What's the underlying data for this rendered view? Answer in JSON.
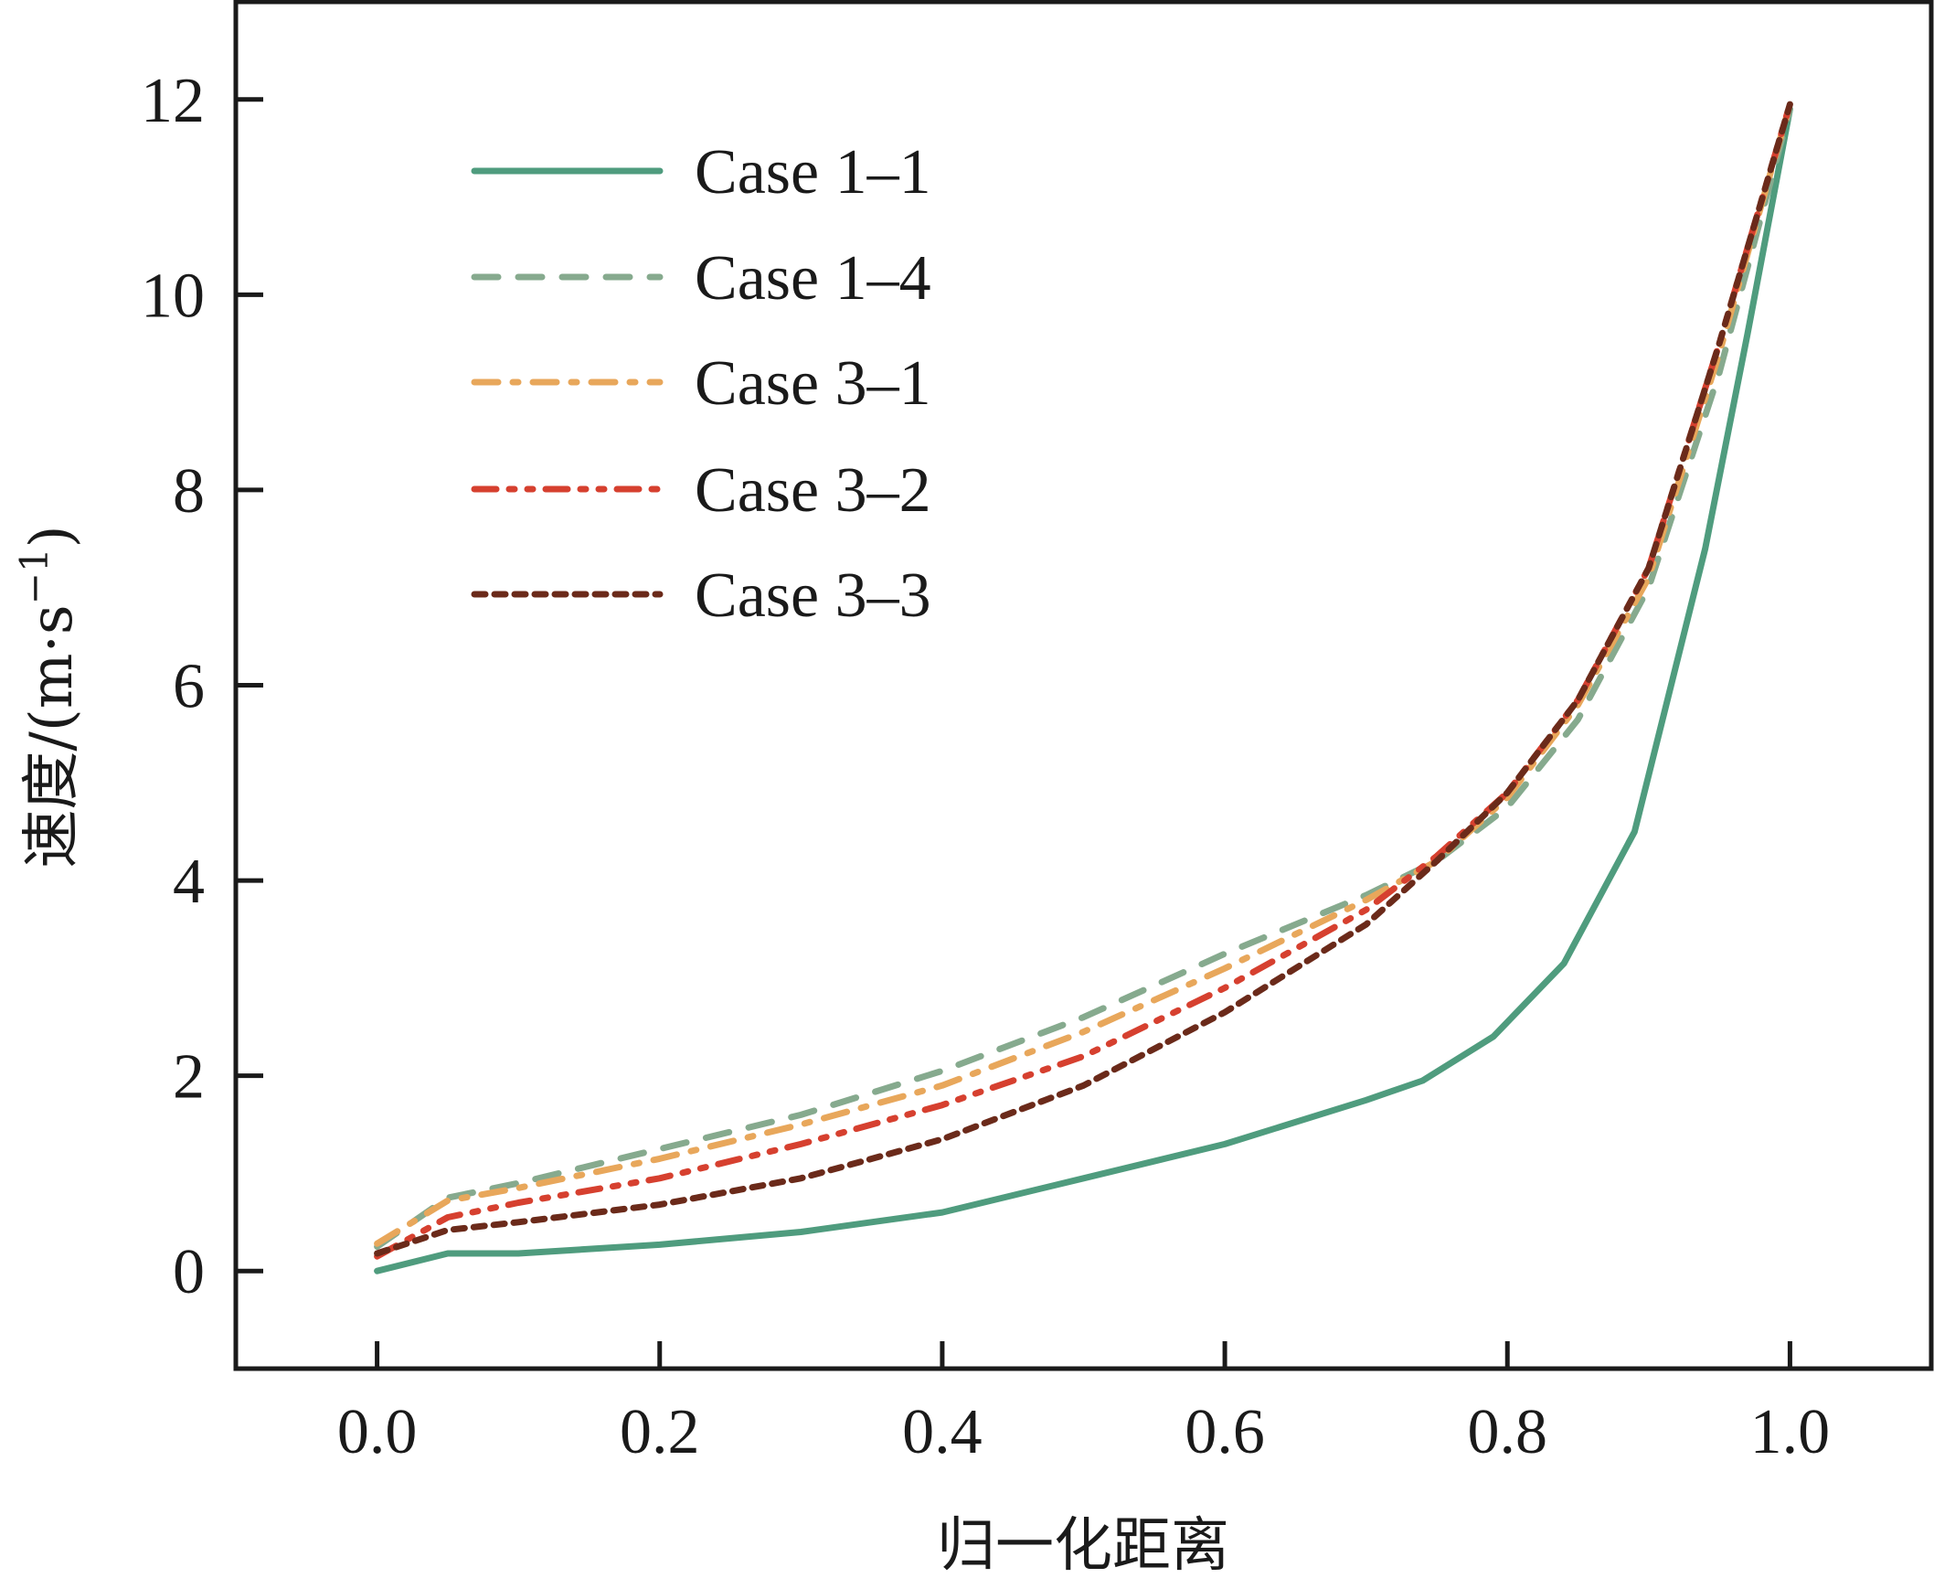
{
  "chart_data": {
    "type": "line",
    "title": "",
    "xlabel": "归一化距离",
    "ylabel": "速度/(m·s",
    "ylabel_exponent": "−1",
    "ylabel_close": ")",
    "xlim": [
      -0.1,
      1.1
    ],
    "ylim": [
      -1,
      13
    ],
    "xticks": [
      0.0,
      0.2,
      0.4,
      0.6,
      0.8,
      1.0
    ],
    "xtick_labels": [
      "0.0",
      "0.2",
      "0.4",
      "0.6",
      "0.8",
      "1.0"
    ],
    "yticks": [
      0,
      2,
      4,
      6,
      8,
      10,
      12
    ],
    "ytick_labels": [
      "0",
      "2",
      "4",
      "6",
      "8",
      "10",
      "12"
    ],
    "grid": false,
    "legend_position": "top-left",
    "series": [
      {
        "name": "Case 1–1",
        "color": "#4f9c7e",
        "dash": "solid",
        "x": [
          0.0,
          0.05,
          0.1,
          0.2,
          0.3,
          0.4,
          0.5,
          0.6,
          0.7,
          0.74,
          0.79,
          0.84,
          0.89,
          0.94,
          0.97,
          1.0
        ],
        "y": [
          0.0,
          0.18,
          0.18,
          0.27,
          0.4,
          0.6,
          0.95,
          1.3,
          1.75,
          1.95,
          2.4,
          3.15,
          4.5,
          7.4,
          9.6,
          11.9
        ]
      },
      {
        "name": "Case 1–4",
        "color": "#86aa8e",
        "dash": "dashed",
        "x": [
          0.0,
          0.05,
          0.1,
          0.2,
          0.3,
          0.4,
          0.5,
          0.6,
          0.7,
          0.75,
          0.8,
          0.85,
          0.9,
          0.95,
          1.0
        ],
        "y": [
          0.25,
          0.75,
          0.9,
          1.25,
          1.6,
          2.05,
          2.6,
          3.25,
          3.85,
          4.2,
          4.75,
          5.65,
          7.0,
          9.2,
          11.9
        ]
      },
      {
        "name": "Case 3–1",
        "color": "#e8a75b",
        "dash": "dashdot",
        "x": [
          0.0,
          0.05,
          0.1,
          0.2,
          0.3,
          0.4,
          0.5,
          0.6,
          0.7,
          0.75,
          0.8,
          0.85,
          0.9,
          0.95,
          1.0
        ],
        "y": [
          0.28,
          0.72,
          0.85,
          1.15,
          1.5,
          1.9,
          2.45,
          3.1,
          3.8,
          4.2,
          4.85,
          5.8,
          7.1,
          9.4,
          11.95
        ]
      },
      {
        "name": "Case 3–2",
        "color": "#d6402f",
        "dash": "dashdotdot",
        "x": [
          0.0,
          0.05,
          0.1,
          0.2,
          0.3,
          0.4,
          0.5,
          0.6,
          0.7,
          0.75,
          0.8,
          0.85,
          0.9,
          0.95,
          1.0
        ],
        "y": [
          0.15,
          0.55,
          0.7,
          0.95,
          1.3,
          1.7,
          2.2,
          2.9,
          3.7,
          4.25,
          4.9,
          5.85,
          7.2,
          9.5,
          11.95
        ]
      },
      {
        "name": "Case 3–3",
        "color": "#6b2a1a",
        "dash": "dotted",
        "x": [
          0.0,
          0.05,
          0.1,
          0.2,
          0.3,
          0.4,
          0.5,
          0.6,
          0.7,
          0.75,
          0.8,
          0.85,
          0.9,
          0.95,
          1.0
        ],
        "y": [
          0.18,
          0.42,
          0.5,
          0.68,
          0.95,
          1.35,
          1.9,
          2.65,
          3.55,
          4.2,
          4.9,
          5.85,
          7.2,
          9.5,
          11.95
        ]
      }
    ]
  }
}
